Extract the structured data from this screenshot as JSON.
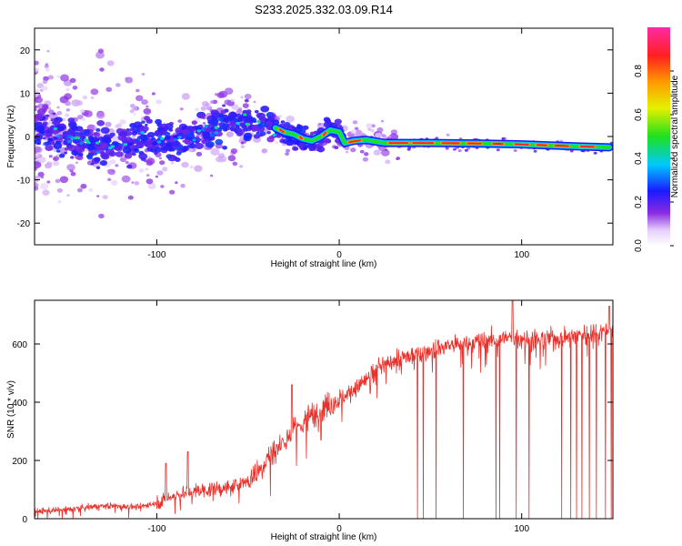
{
  "title": "S233.2025.332.03.09.R14",
  "chart_data": [
    {
      "type": "heatmap",
      "name": "spectrogram",
      "xlabel": "Height of straight line (km)",
      "ylabel": "Frequency (Hz)",
      "xlim": [
        -167,
        150
      ],
      "ylim": [
        -25,
        25
      ],
      "xticks": [
        "-100",
        "0",
        "100"
      ],
      "xtick_values": [
        -100,
        0,
        100
      ],
      "yticks": [
        "20",
        "10",
        "0",
        "-10",
        "-20"
      ],
      "ytick_values": [
        20,
        10,
        0,
        -10,
        -20
      ],
      "colorbar": {
        "label": "Normalized spectral amplitude",
        "range": [
          0,
          1
        ],
        "ticks": [
          "0.0",
          "0.2",
          "0.4",
          "0.6",
          "0.8"
        ],
        "tick_values": [
          0.0,
          0.2,
          0.4,
          0.6,
          0.8
        ]
      },
      "ridge_track": [
        [
          -160,
          1
        ],
        [
          -150,
          0
        ],
        [
          -140,
          -1
        ],
        [
          -130,
          -2
        ],
        [
          -120,
          -2
        ],
        [
          -110,
          -1
        ],
        [
          -100,
          0
        ],
        [
          -90,
          -1
        ],
        [
          -80,
          0
        ],
        [
          -70,
          2
        ],
        [
          -60,
          4
        ],
        [
          -50,
          3
        ],
        [
          -45,
          3
        ],
        [
          -40,
          3
        ],
        [
          -35,
          2
        ],
        [
          -30,
          1
        ],
        [
          -25,
          0.5
        ],
        [
          -20,
          -0.5
        ],
        [
          -15,
          -1
        ],
        [
          -10,
          0
        ],
        [
          -5,
          1.5
        ],
        [
          0,
          1
        ],
        [
          3,
          -1.5
        ],
        [
          8,
          -1
        ],
        [
          15,
          -0.8
        ],
        [
          25,
          -1.5
        ],
        [
          50,
          -1.5
        ],
        [
          75,
          -1.6
        ],
        [
          100,
          -1.8
        ],
        [
          125,
          -2.2
        ],
        [
          148,
          -2.5
        ]
      ]
    },
    {
      "type": "line",
      "name": "snr",
      "xlabel": "Height of straight line (km)",
      "ylabel": "SNR (10 * v/v)",
      "xlim": [
        -167,
        150
      ],
      "ylim": [
        0,
        750
      ],
      "xticks": [
        "-100",
        "0",
        "100"
      ],
      "xtick_values": [
        -100,
        0,
        100
      ],
      "yticks": [
        "600",
        "400",
        "200",
        "0"
      ],
      "ytick_values": [
        600,
        400,
        200,
        0
      ],
      "color": "#e8302a",
      "trend": [
        [
          -167,
          25
        ],
        [
          -150,
          30
        ],
        [
          -130,
          45
        ],
        [
          -110,
          40
        ],
        [
          -100,
          55
        ],
        [
          -90,
          80
        ],
        [
          -80,
          95
        ],
        [
          -70,
          100
        ],
        [
          -60,
          105
        ],
        [
          -50,
          130
        ],
        [
          -40,
          200
        ],
        [
          -30,
          270
        ],
        [
          -20,
          330
        ],
        [
          -10,
          380
        ],
        [
          0,
          410
        ],
        [
          10,
          450
        ],
        [
          20,
          510
        ],
        [
          30,
          545
        ],
        [
          40,
          560
        ],
        [
          50,
          580
        ],
        [
          60,
          595
        ],
        [
          70,
          600
        ],
        [
          80,
          610
        ],
        [
          90,
          620
        ],
        [
          100,
          620
        ],
        [
          110,
          615
        ],
        [
          120,
          620
        ],
        [
          130,
          630
        ],
        [
          140,
          640
        ],
        [
          150,
          650
        ]
      ],
      "dropouts": [
        43,
        46,
        53,
        68,
        86,
        88,
        97,
        104,
        122,
        127,
        130,
        133,
        137,
        141,
        146,
        149
      ],
      "spikes": [
        [
          -95,
          190
        ],
        [
          -83,
          230
        ],
        [
          -10,
          270
        ],
        [
          -26,
          460
        ],
        [
          17,
          430
        ],
        [
          95,
          750
        ],
        [
          148,
          730
        ]
      ]
    }
  ]
}
